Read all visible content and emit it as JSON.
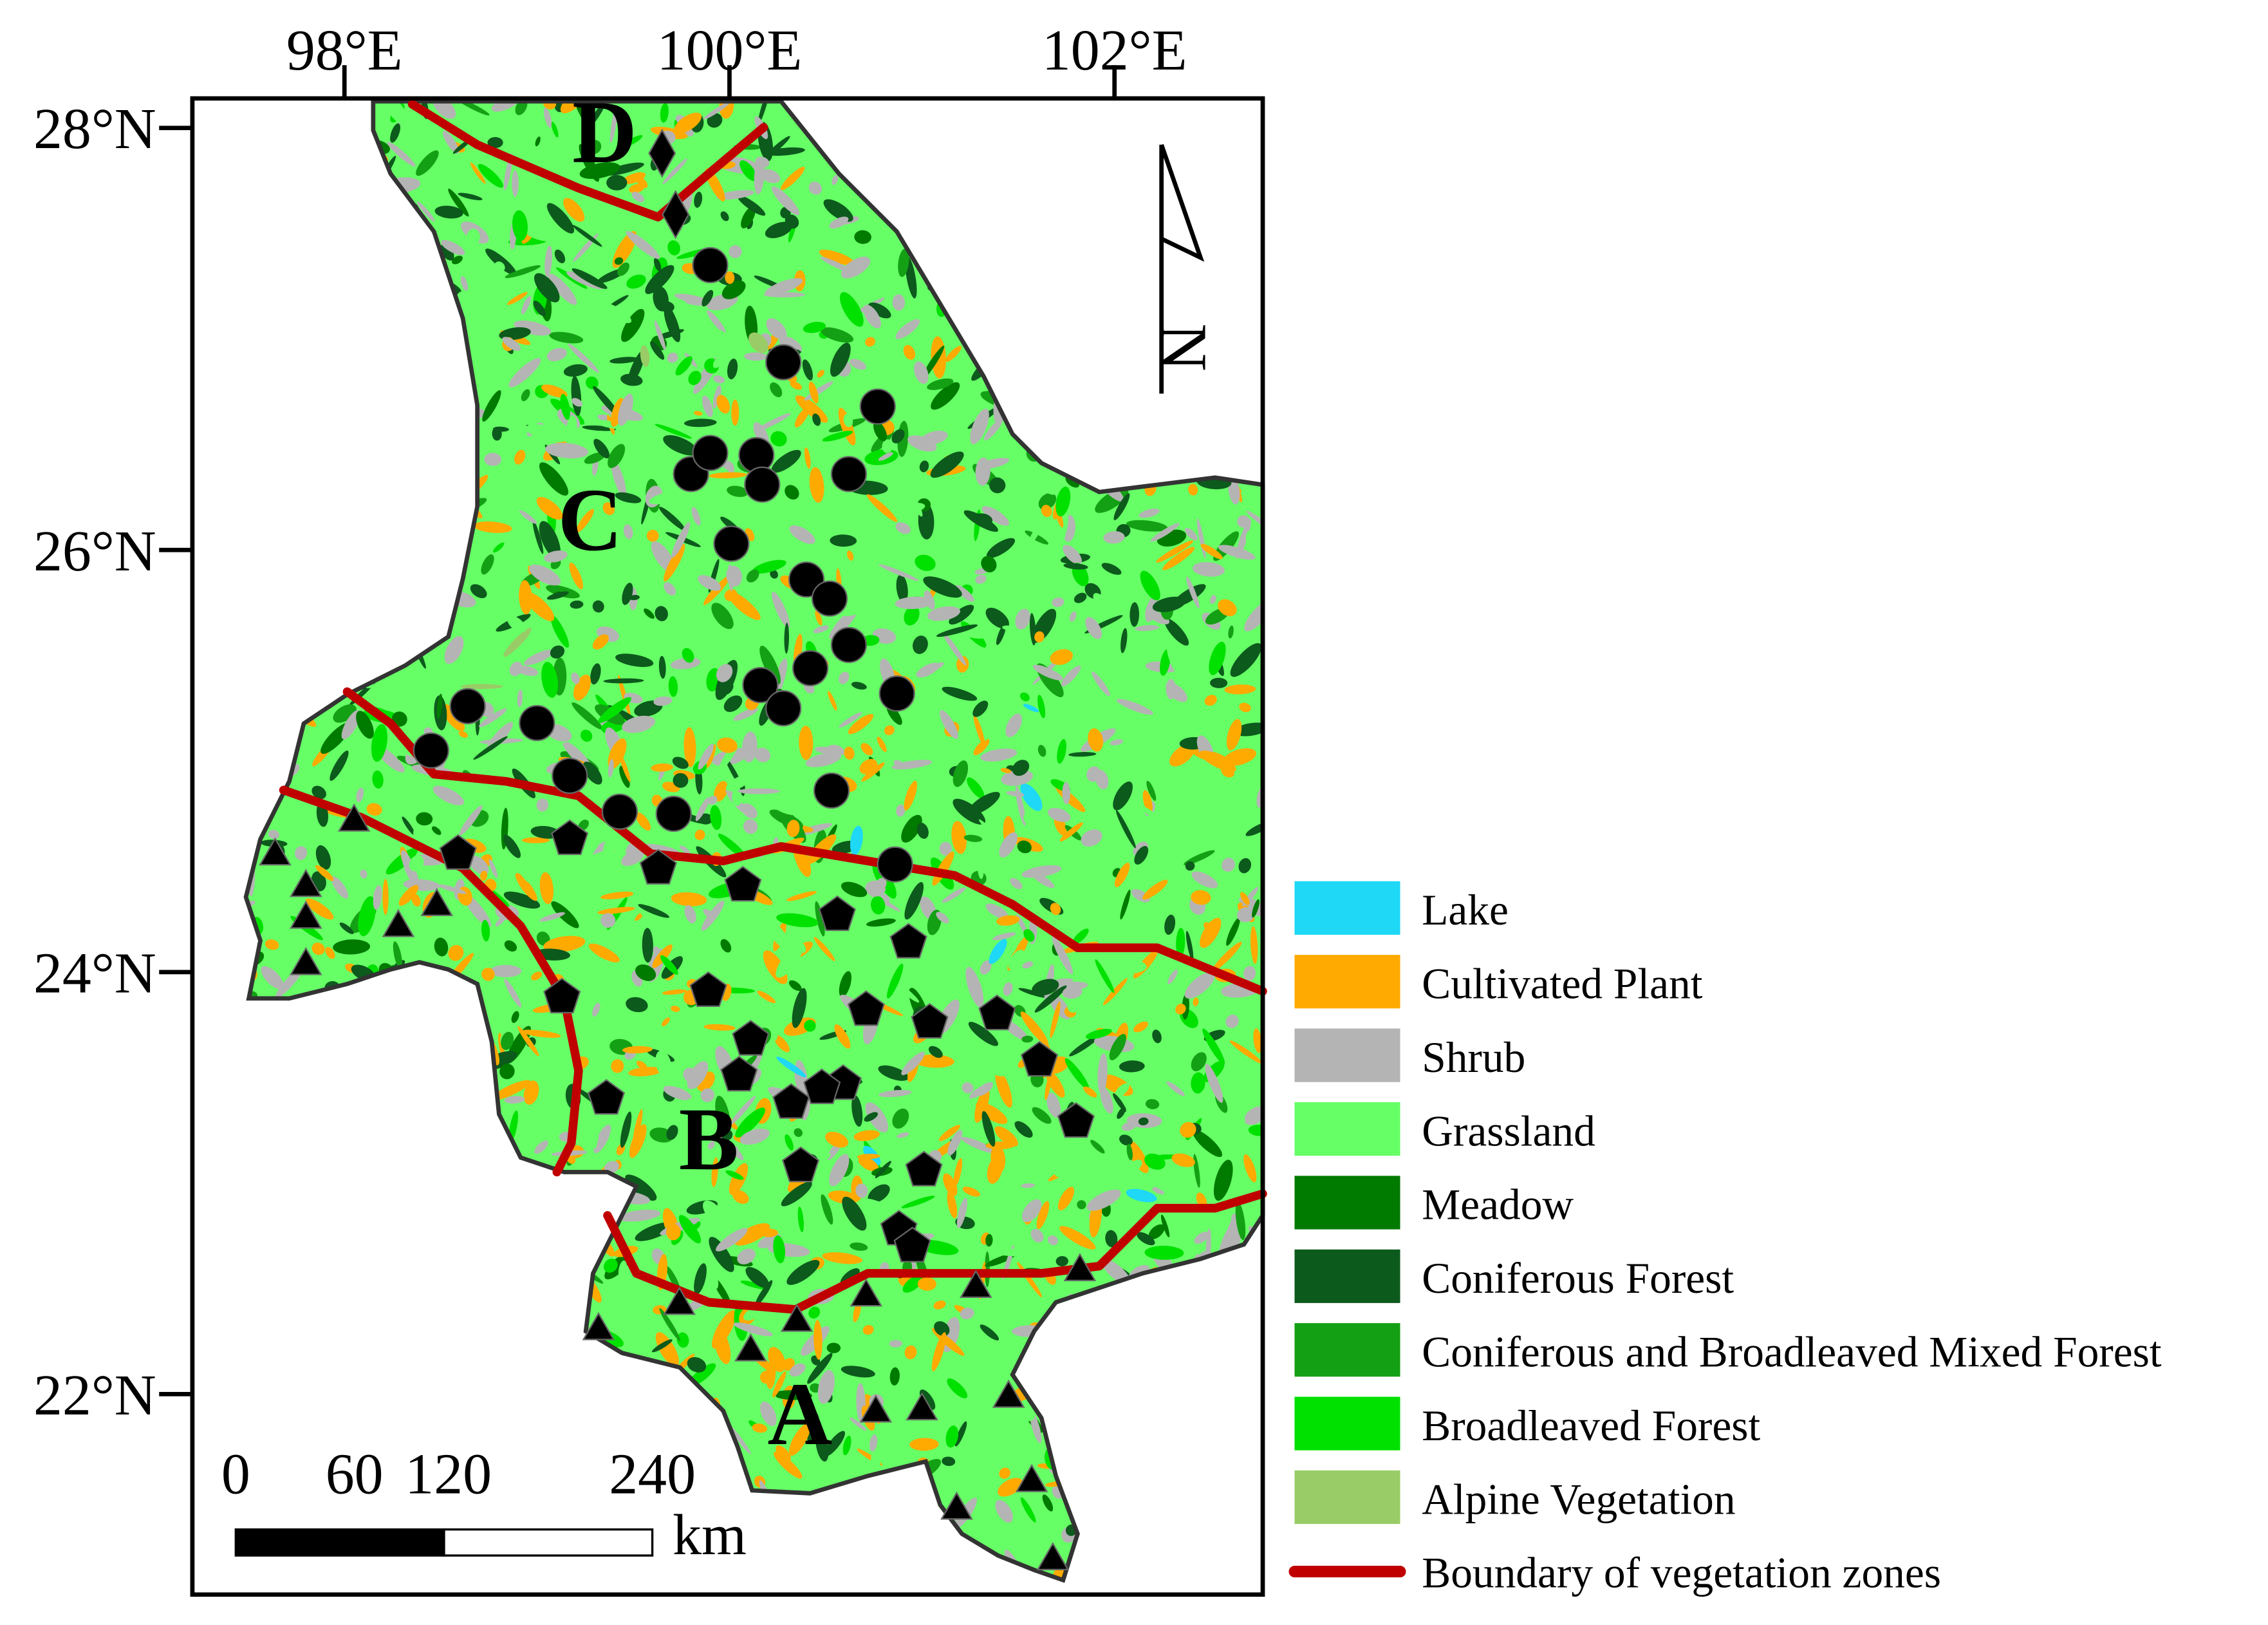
{
  "map": {
    "xlim": [
      97.21,
      102.77
    ],
    "ylim": [
      21.05,
      28.14
    ],
    "xticks": [
      {
        "value": 98,
        "label": "98°E"
      },
      {
        "value": 100,
        "label": "100°E"
      },
      {
        "value": 102,
        "label": "102°E"
      }
    ],
    "yticks": [
      {
        "value": 28,
        "label": "28°N"
      },
      {
        "value": 26,
        "label": "26°N"
      },
      {
        "value": 24,
        "label": "24°N"
      },
      {
        "value": 22,
        "label": "22°N"
      }
    ],
    "north_label": "N",
    "scale_bar": {
      "ticks": [
        0,
        60,
        120,
        240
      ],
      "unit": "km"
    },
    "zones": [
      {
        "label": "A",
        "marker": "triangle",
        "sites": {
          "lon": [
            97.64,
            98.05,
            97.8,
            97.8,
            97.8,
            98.28,
            98.48,
            99.32,
            99.74,
            100.11,
            100.35,
            100.71,
            101.28,
            101.82,
            100.76,
            101.0,
            101.45,
            101.57,
            101.18,
            101.68
          ],
          "lat": [
            24.55,
            24.71,
            24.4,
            24.25,
            24.03,
            24.21,
            24.31,
            22.3,
            22.42,
            22.2,
            22.34,
            22.46,
            22.5,
            22.58,
            21.91,
            21.92,
            21.98,
            21.58,
            21.45,
            21.21
          ]
        }
      },
      {
        "label": "B",
        "marker": "pentagon",
        "sites": {
          "lon": [
            98.59,
            99.17,
            99.63,
            100.07,
            100.56,
            100.93,
            99.13,
            99.89,
            100.71,
            101.04,
            101.39,
            100.11,
            100.05,
            101.61,
            100.59,
            100.32,
            100.48,
            99.36,
            101.8,
            100.37,
            101.01,
            100.88,
            100.95
          ],
          "lat": [
            24.56,
            24.63,
            24.49,
            24.41,
            24.27,
            24.14,
            23.88,
            23.91,
            23.82,
            23.76,
            23.8,
            23.68,
            23.51,
            23.58,
            23.47,
            23.38,
            23.45,
            23.4,
            23.29,
            23.08,
            23.06,
            22.78,
            22.7
          ]
        }
      },
      {
        "label": "C",
        "marker": "circle",
        "sites": {
          "lon": [
            99.9,
            100.28,
            100.77,
            99.8,
            99.9,
            100.14,
            100.17,
            100.62,
            100.01,
            100.4,
            100.52,
            100.62,
            100.42,
            100.16,
            100.28,
            100.87,
            98.64,
            99.0,
            98.45,
            99.17,
            99.43,
            99.71,
            100.53,
            100.86
          ],
          "lat": [
            27.35,
            26.89,
            26.68,
            26.36,
            26.46,
            26.45,
            26.31,
            26.36,
            26.03,
            25.86,
            25.77,
            25.55,
            25.44,
            25.36,
            25.25,
            25.32,
            25.26,
            25.18,
            25.05,
            24.93,
            24.76,
            24.75,
            24.86,
            24.51
          ]
        }
      },
      {
        "label": "D",
        "marker": "diamond",
        "sites": {
          "lon": [
            99.65,
            99.72
          ],
          "lat": [
            27.88,
            27.59
          ]
        }
      }
    ],
    "legend": [
      {
        "name": "Lake",
        "color": "#1ed8f6"
      },
      {
        "name": "Cultivated Plant",
        "color": "#ffaa00"
      },
      {
        "name": "Shrub",
        "color": "#b4b4b4"
      },
      {
        "name": "Grassland",
        "color": "#66ff66"
      },
      {
        "name": "Meadow",
        "color": "#017a00"
      },
      {
        "name": "Coniferous Forest",
        "color": "#0c5a1c"
      },
      {
        "name": "Coniferous and Broadleaved Mixed Forest",
        "color": "#14a014"
      },
      {
        "name": "Broadleaved Forest",
        "color": "#00e100"
      },
      {
        "name": "Alpine Vegetation",
        "color": "#99cc66"
      },
      {
        "name": "Boundary of vegetation zones",
        "color": "#c00000",
        "kind": "line"
      }
    ]
  }
}
